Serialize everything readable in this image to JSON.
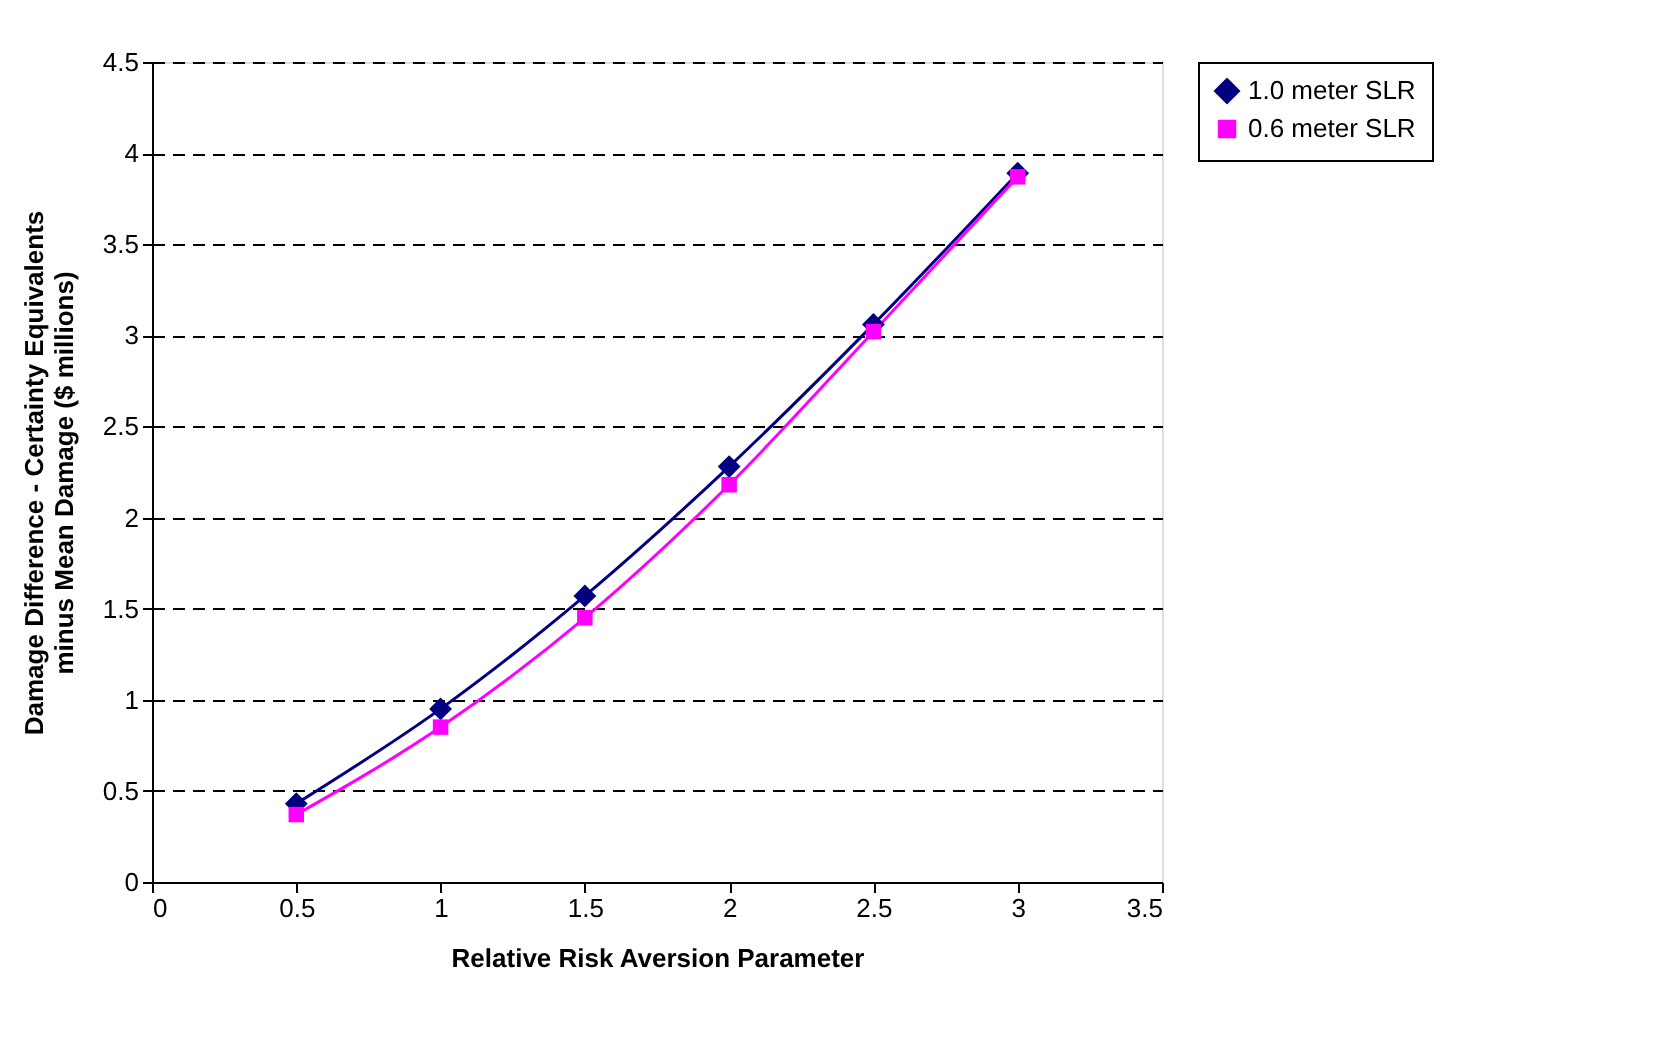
{
  "chart_data": {
    "type": "line",
    "xlabel": "Relative Risk Aversion Parameter",
    "ylabel": "Damage Difference - Certainty Equivalents minus Mean Damage ($ millions)",
    "x": [
      0.5,
      1,
      1.5,
      2,
      2.5,
      3
    ],
    "series": [
      {
        "name": "1.0 meter SLR",
        "color": "#000080",
        "marker": "diamond",
        "values": [
          0.43,
          0.95,
          1.57,
          2.28,
          3.06,
          3.89
        ]
      },
      {
        "name": "0.6 meter SLR",
        "color": "#ff00ff",
        "marker": "square",
        "values": [
          0.37,
          0.85,
          1.45,
          2.18,
          3.02,
          3.87
        ]
      }
    ],
    "xlim": [
      0,
      3.5
    ],
    "xticks": [
      0,
      0.5,
      1,
      1.5,
      2,
      2.5,
      3,
      3.5
    ],
    "ylim": [
      0,
      4.5
    ],
    "yticks": [
      0,
      0.5,
      1,
      1.5,
      2,
      2.5,
      3,
      3.5,
      4,
      4.5
    ],
    "grid": "y",
    "legend": "right",
    "line_style": "solid"
  }
}
